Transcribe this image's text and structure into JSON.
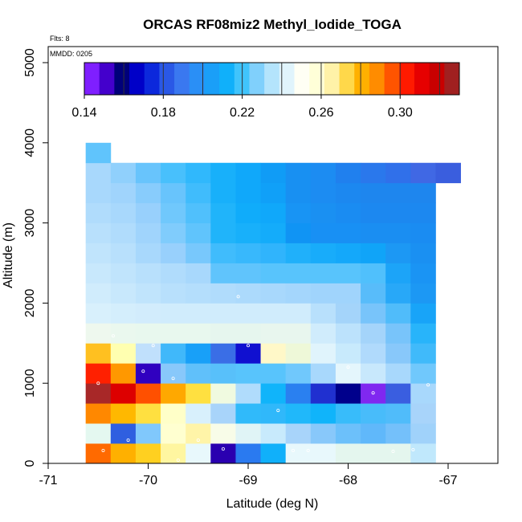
{
  "chart_data": {
    "type": "heatmap",
    "title": "ORCAS RF08miz2 Methyl_Iodide_TOGA",
    "xlabel": "Latitude (deg N)",
    "ylabel": "Altitude (m)",
    "xlim": [
      -71,
      -66.5
    ],
    "ylim": [
      0,
      5200
    ],
    "x_ticks": [
      -71,
      -70,
      -69,
      -68,
      -67
    ],
    "x_tick_labels": [
      "-71",
      "-70",
      "-69",
      "-68",
      "-67"
    ],
    "y_ticks": [
      0,
      1000,
      2000,
      3000,
      4000,
      5000
    ],
    "y_tick_labels": [
      "0",
      "1000",
      "2000",
      "3000",
      "4000",
      "5000"
    ],
    "flights_note": "Flts: 8",
    "mmdd_note": "MMDD: 0205",
    "cell_width_deg": 0.25,
    "cell_height_m": 250,
    "colorbar": {
      "min": 0.14,
      "max": 0.33,
      "tick_values": [
        0.14,
        0.18,
        0.22,
        0.26,
        0.3
      ],
      "tick_labels": [
        "0.14",
        "0.18",
        "0.22",
        "0.26",
        "0.30"
      ],
      "colors": [
        "#7f1fff",
        "#4400cc",
        "#00007a",
        "#0000c8",
        "#0c28dc",
        "#2a58e6",
        "#3a78f0",
        "#2a8ff6",
        "#1a9ff8",
        "#10b0fa",
        "#40c4fc",
        "#80d0fc",
        "#b4e4fc",
        "#e0f4fc",
        "#fffff4",
        "#ffffd8",
        "#fff2a8",
        "#ffd84a",
        "#ffb000",
        "#ff8c00",
        "#ff5400",
        "#ff1a00",
        "#e60000",
        "#c80000",
        "#a02020"
      ],
      "band_edges": [
        0.14,
        0.16,
        0.18,
        0.2,
        0.22,
        0.24,
        0.26,
        0.28,
        0.3,
        0.32,
        0.33
      ]
    },
    "rows": [
      {
        "altitude": 125,
        "cells": [
          [
            -70.5,
            "#ff6a00"
          ],
          [
            -70.25,
            "#ffb000"
          ],
          [
            -70.0,
            "#ffd020"
          ],
          [
            -69.75,
            "#fff6a0"
          ],
          [
            -69.5,
            "#e8f8fc"
          ],
          [
            -69.25,
            "#2a00b0"
          ],
          [
            -69.0,
            "#2a7af0"
          ],
          [
            -68.75,
            "#10b0fa"
          ],
          [
            -68.5,
            "#e8f8fc"
          ],
          [
            -68.25,
            "#e8f8fc"
          ],
          [
            -68.0,
            "#e4f6ee"
          ],
          [
            -67.75,
            "#e4f6ee"
          ],
          [
            -67.5,
            "#e4f6ee"
          ],
          [
            -67.25,
            "#c0e8fc"
          ]
        ]
      },
      {
        "altitude": 375,
        "cells": [
          [
            -70.5,
            "#e4f8f0"
          ],
          [
            -70.25,
            "#2f5fe0"
          ],
          [
            -70.0,
            "#80c8fc"
          ],
          [
            -69.75,
            "#ffffd0"
          ],
          [
            -69.5,
            "#fff4a8"
          ],
          [
            -69.25,
            "#f8fce8"
          ],
          [
            -69.0,
            "#e0f4f6"
          ],
          [
            -68.75,
            "#c8eafc"
          ],
          [
            -68.5,
            "#a8d4fa"
          ],
          [
            -68.25,
            "#88c8fa"
          ],
          [
            -68.0,
            "#6cc0fa"
          ],
          [
            -67.75,
            "#60b8fa"
          ],
          [
            -67.5,
            "#74c0fa"
          ],
          [
            -67.25,
            "#a0d2fa"
          ]
        ]
      },
      {
        "altitude": 625,
        "cells": [
          [
            -70.5,
            "#ff8800"
          ],
          [
            -70.25,
            "#ffb800"
          ],
          [
            -70.0,
            "#ffe040"
          ],
          [
            -69.75,
            "#ffffc8"
          ],
          [
            -69.5,
            "#d8f0fc"
          ],
          [
            -69.25,
            "#a8d4fa"
          ],
          [
            -69.0,
            "#30bafa"
          ],
          [
            -68.75,
            "#30b8fa"
          ],
          [
            -68.5,
            "#20b8fa"
          ],
          [
            -68.25,
            "#10b4fa"
          ],
          [
            -68.0,
            "#38bcfa"
          ],
          [
            -67.75,
            "#48bcfa"
          ],
          [
            -67.5,
            "#50bcfa"
          ],
          [
            -67.25,
            "#a8d4fa"
          ]
        ]
      },
      {
        "altitude": 875,
        "cells": [
          [
            -70.5,
            "#a82828"
          ],
          [
            -70.25,
            "#dd0000"
          ],
          [
            -70.0,
            "#ff5000"
          ],
          [
            -69.75,
            "#ffa800"
          ],
          [
            -69.5,
            "#ffe040"
          ],
          [
            -69.25,
            "#f0fae0"
          ],
          [
            -69.0,
            "#b0dcfc"
          ],
          [
            -68.75,
            "#10b4fa"
          ],
          [
            -68.5,
            "#2a80f0"
          ],
          [
            -68.25,
            "#2030d0"
          ],
          [
            -68.0,
            "#00008c"
          ],
          [
            -67.75,
            "#8028f0"
          ],
          [
            -67.5,
            "#3a5ee0"
          ],
          [
            -67.25,
            "#a8d8fc"
          ]
        ]
      },
      {
        "altitude": 1125,
        "cells": [
          [
            -70.5,
            "#ff2000"
          ],
          [
            -70.25,
            "#ff9800"
          ],
          [
            -70.0,
            "#3000c0"
          ],
          [
            -69.75,
            "#88c8fa"
          ],
          [
            -69.5,
            "#60c0fa"
          ],
          [
            -69.25,
            "#58c0fa"
          ],
          [
            -69.0,
            "#58c4fc"
          ],
          [
            -68.75,
            "#58c4fc"
          ],
          [
            -68.5,
            "#70c8fc"
          ],
          [
            -68.25,
            "#a8d8fc"
          ],
          [
            -68.0,
            "#e4f6fc"
          ],
          [
            -67.75,
            "#c8e8fc"
          ],
          [
            -67.5,
            "#a8d8fc"
          ],
          [
            -67.25,
            "#70c8fc"
          ]
        ]
      },
      {
        "altitude": 1375,
        "cells": [
          [
            -70.5,
            "#ffc020"
          ],
          [
            -70.25,
            "#ffffb0"
          ],
          [
            -70.0,
            "#c0e0fc"
          ],
          [
            -69.75,
            "#40b8fa"
          ],
          [
            -69.5,
            "#18a0f8"
          ],
          [
            -69.25,
            "#3a6ee6"
          ],
          [
            -69.0,
            "#1010d0"
          ],
          [
            -68.75,
            "#fff8c8"
          ],
          [
            -68.5,
            "#eef8d8"
          ],
          [
            -68.25,
            "#e0f4fc"
          ],
          [
            -68.0,
            "#c8eafc"
          ],
          [
            -67.75,
            "#b0dafc"
          ],
          [
            -67.5,
            "#88c8fa"
          ],
          [
            -67.25,
            "#40bafa"
          ]
        ]
      },
      {
        "altitude": 1625,
        "cells": [
          [
            -70.5,
            "#eef8ee"
          ],
          [
            -70.25,
            "#eaf8ee"
          ],
          [
            -70.0,
            "#e8f8ee"
          ],
          [
            -69.75,
            "#e8f8ee"
          ],
          [
            -69.5,
            "#e8f8ee"
          ],
          [
            -69.25,
            "#e6f6ee"
          ],
          [
            -69.0,
            "#e6f6ee"
          ],
          [
            -68.75,
            "#e8f6ee"
          ],
          [
            -68.5,
            "#e8f6ee"
          ],
          [
            -68.25,
            "#d0ecfc"
          ],
          [
            -68.0,
            "#bce2fc"
          ],
          [
            -67.75,
            "#a4d4fa"
          ],
          [
            -67.5,
            "#78c4fa"
          ],
          [
            -67.25,
            "#28b4fa"
          ]
        ]
      },
      {
        "altitude": 1875,
        "cells": [
          [
            -70.5,
            "#d8f0fc"
          ],
          [
            -70.25,
            "#d4eefc"
          ],
          [
            -70.0,
            "#d2ecfc"
          ],
          [
            -69.75,
            "#d0ecfc"
          ],
          [
            -69.5,
            "#d0ecfc"
          ],
          [
            -69.25,
            "#d0ecfc"
          ],
          [
            -69.0,
            "#d0ecfc"
          ],
          [
            -68.75,
            "#d0ecfc"
          ],
          [
            -68.5,
            "#d0ecfc"
          ],
          [
            -68.25,
            "#b8e0fc"
          ],
          [
            -68.0,
            "#a4d4fa"
          ],
          [
            -67.75,
            "#78c4fa"
          ],
          [
            -67.5,
            "#50bcfa"
          ],
          [
            -67.25,
            "#18a4f8"
          ]
        ]
      },
      {
        "altitude": 2125,
        "cells": [
          [
            -70.5,
            "#d0ecfc"
          ],
          [
            -70.25,
            "#c8e8fc"
          ],
          [
            -70.0,
            "#c0e4fc"
          ],
          [
            -69.75,
            "#b8e0fc"
          ],
          [
            -69.5,
            "#b4defc"
          ],
          [
            -69.25,
            "#b0dcfc"
          ],
          [
            -69.0,
            "#acdafc"
          ],
          [
            -68.75,
            "#a8d8fc"
          ],
          [
            -68.5,
            "#a4d6fc"
          ],
          [
            -68.25,
            "#a0d4fc"
          ],
          [
            -68.0,
            "#a0d4fc"
          ],
          [
            -67.75,
            "#58bcfa"
          ],
          [
            -67.5,
            "#28a8f8"
          ],
          [
            -67.25,
            "#1c98f4"
          ]
        ]
      },
      {
        "altitude": 2375,
        "cells": [
          [
            -70.5,
            "#c8e8fc"
          ],
          [
            -70.25,
            "#c0e4fc"
          ],
          [
            -70.0,
            "#b8e0fc"
          ],
          [
            -69.75,
            "#b0dcfc"
          ],
          [
            -69.5,
            "#a8d8fc"
          ],
          [
            -69.25,
            "#60c4fc"
          ],
          [
            -69.0,
            "#60c4fc"
          ],
          [
            -68.75,
            "#58c4fc"
          ],
          [
            -68.5,
            "#58c4fc"
          ],
          [
            -68.25,
            "#58c4fc"
          ],
          [
            -68.0,
            "#58c4fc"
          ],
          [
            -67.75,
            "#50c0fc"
          ],
          [
            -67.5,
            "#1ca4f8"
          ],
          [
            -67.25,
            "#1a94f4"
          ]
        ]
      },
      {
        "altitude": 2625,
        "cells": [
          [
            -70.5,
            "#c0e4fc"
          ],
          [
            -70.25,
            "#b8e0fc"
          ],
          [
            -70.0,
            "#a8d8fc"
          ],
          [
            -69.75,
            "#98d0fc"
          ],
          [
            -69.5,
            "#78c8fc"
          ],
          [
            -69.25,
            "#40bcfc"
          ],
          [
            -69.0,
            "#38b8fc"
          ],
          [
            -68.75,
            "#30b4fc"
          ],
          [
            -68.5,
            "#20b0fa"
          ],
          [
            -68.25,
            "#18acfa"
          ],
          [
            -68.0,
            "#14a8fa"
          ],
          [
            -67.75,
            "#10a4f8"
          ],
          [
            -67.5,
            "#1c98f4"
          ],
          [
            -67.25,
            "#1a90f2"
          ]
        ]
      },
      {
        "altitude": 2875,
        "cells": [
          [
            -70.5,
            "#b8e0fc"
          ],
          [
            -70.25,
            "#b0dcfc"
          ],
          [
            -70.0,
            "#a0d4fc"
          ],
          [
            -69.75,
            "#80ccfc"
          ],
          [
            -69.5,
            "#60c4fc"
          ],
          [
            -69.25,
            "#20b4fa"
          ],
          [
            -69.0,
            "#18b0fa"
          ],
          [
            -68.75,
            "#14acfa"
          ],
          [
            -68.5,
            "#1094f4"
          ],
          [
            -68.25,
            "#1890f4"
          ],
          [
            -68.0,
            "#1890f4"
          ],
          [
            -67.75,
            "#1a8ef2"
          ],
          [
            -67.5,
            "#1a8ef2"
          ],
          [
            -67.25,
            "#1a8cf2"
          ]
        ]
      },
      {
        "altitude": 3125,
        "cells": [
          [
            -70.5,
            "#b0dcfc"
          ],
          [
            -70.25,
            "#a8d8fc"
          ],
          [
            -70.0,
            "#98d0fc"
          ],
          [
            -69.75,
            "#70c8fc"
          ],
          [
            -69.5,
            "#50c0fc"
          ],
          [
            -69.25,
            "#20b4fa"
          ],
          [
            -69.0,
            "#10acfa"
          ],
          [
            -68.75,
            "#10a8fa"
          ],
          [
            -68.5,
            "#1894f4"
          ],
          [
            -68.25,
            "#1a90f2"
          ],
          [
            -68.0,
            "#1a8cf2"
          ],
          [
            -67.75,
            "#1c88f0"
          ],
          [
            -67.5,
            "#1c88f0"
          ],
          [
            -67.25,
            "#1c88f0"
          ]
        ]
      },
      {
        "altitude": 3375,
        "cells": [
          [
            -70.5,
            "#a8d8fc"
          ],
          [
            -70.25,
            "#a0d4fc"
          ],
          [
            -70.0,
            "#88ccfc"
          ],
          [
            -69.75,
            "#68c4fc"
          ],
          [
            -69.5,
            "#40bcfc"
          ],
          [
            -69.25,
            "#18b0fa"
          ],
          [
            -69.0,
            "#10a8fa"
          ],
          [
            -68.75,
            "#10a0f8"
          ],
          [
            -68.5,
            "#1890f2"
          ],
          [
            -68.25,
            "#1c8cf2"
          ],
          [
            -68.0,
            "#1c88f0"
          ],
          [
            -67.75,
            "#1e86ee"
          ],
          [
            -67.5,
            "#1e86ee"
          ],
          [
            -67.25,
            "#1e86ee"
          ]
        ]
      },
      {
        "altitude": 3625,
        "cells": [
          [
            -70.5,
            "#a8d8fc"
          ],
          [
            -70.25,
            "#90d0fc"
          ],
          [
            -70.0,
            "#68c4fc"
          ],
          [
            -69.75,
            "#48c0fc"
          ],
          [
            -69.5,
            "#30b8fc"
          ],
          [
            -69.25,
            "#18b0fa"
          ],
          [
            -69.0,
            "#10a8fa"
          ],
          [
            -68.75,
            "#109cf6"
          ],
          [
            -68.5,
            "#1890f2"
          ],
          [
            -68.25,
            "#1c8cf2"
          ],
          [
            -68.0,
            "#2080ee"
          ],
          [
            -67.75,
            "#2a78ec"
          ],
          [
            -67.5,
            "#3070ea"
          ],
          [
            -67.25,
            "#4068e4"
          ],
          [
            -67.0,
            "#3a5ede"
          ]
        ]
      },
      {
        "altitude": 3875,
        "cells": [
          [
            -70.5,
            "#60c4fc"
          ]
        ]
      }
    ],
    "samples": [
      [
        -70.45,
        160
      ],
      [
        -70.2,
        290
      ],
      [
        -69.7,
        40
      ],
      [
        -69.5,
        290
      ],
      [
        -69.25,
        180
      ],
      [
        -68.55,
        160
      ],
      [
        -68.4,
        160
      ],
      [
        -67.55,
        150
      ],
      [
        -67.35,
        170
      ],
      [
        -68.7,
        660
      ],
      [
        -70.5,
        1000
      ],
      [
        -70.05,
        1150
      ],
      [
        -69.75,
        1060
      ],
      [
        -67.75,
        880
      ],
      [
        -67.2,
        980
      ],
      [
        -68.0,
        1200
      ],
      [
        -69.95,
        1470
      ],
      [
        -69.0,
        1470
      ],
      [
        -70.35,
        1590
      ],
      [
        -70.3,
        3780
      ],
      [
        -66.75,
        3600
      ],
      [
        -69.1,
        2080
      ]
    ]
  }
}
